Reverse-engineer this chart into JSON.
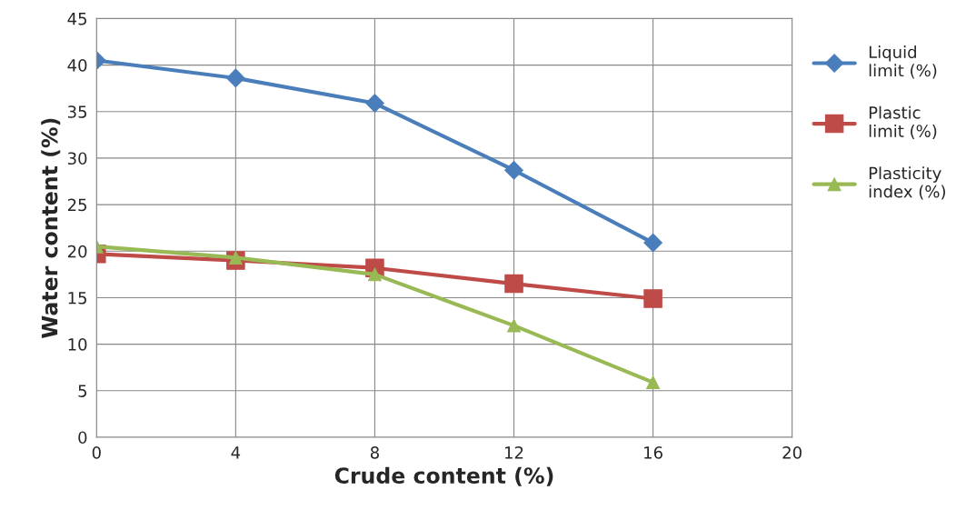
{
  "chart_data": {
    "type": "line",
    "xlabel": "Crude content (%)",
    "ylabel": "Water content (%)",
    "x": [
      0,
      4,
      8,
      12,
      16
    ],
    "series": [
      {
        "name": "Liquid limit (%)",
        "color": "#4a7ebb",
        "values": [
          40.5,
          38.6,
          35.9,
          28.7,
          20.9
        ],
        "marker": "diamond"
      },
      {
        "name": "Plastic limit (%)",
        "color": "#be4b48",
        "values": [
          19.7,
          19.0,
          18.2,
          16.5,
          14.9
        ],
        "marker": "square"
      },
      {
        "name": "Plasticity index (%)",
        "color": "#98b954",
        "values": [
          20.5,
          19.3,
          17.5,
          12.0,
          5.9
        ],
        "marker": "triangle"
      }
    ],
    "xlim": [
      0,
      20
    ],
    "xticks": [
      0,
      4,
      8,
      12,
      16,
      20
    ],
    "ylim": [
      0,
      45
    ],
    "yticks": [
      0,
      5,
      10,
      15,
      20,
      25,
      30,
      35,
      40,
      45
    ],
    "grid": true,
    "legend": "right",
    "line_style": "solid"
  }
}
